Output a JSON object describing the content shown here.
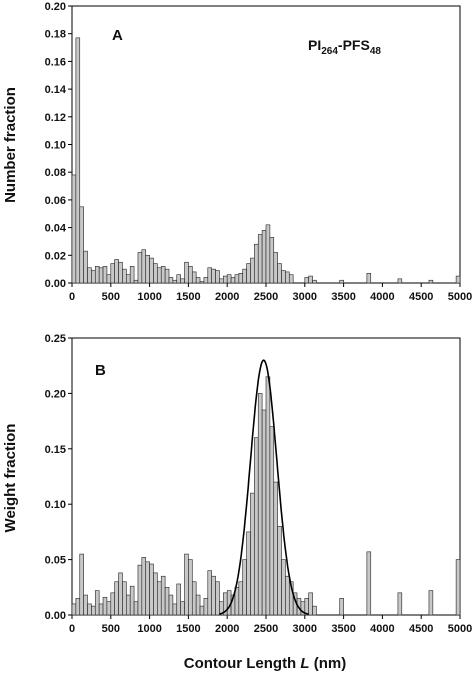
{
  "figure": {
    "xlabel_main": "Contour Length ",
    "xlabel_var": "L",
    "xlabel_unit": " (nm)",
    "sample_label_pre": "PI",
    "sample_label_sub1": "264",
    "sample_label_mid": "-PFS",
    "sample_label_sub2": "48"
  },
  "chart_data": [
    {
      "type": "bar",
      "panel_label": "A",
      "title": "",
      "ylabel": "Number fraction",
      "xlabel": "",
      "xlim": [
        0,
        5000
      ],
      "ylim": [
        0,
        0.2
      ],
      "xticks": [
        0,
        500,
        1000,
        1500,
        2000,
        2500,
        3000,
        3500,
        4000,
        4500,
        5000
      ],
      "yticks": [
        0.0,
        0.02,
        0.04,
        0.06,
        0.08,
        0.1,
        0.12,
        0.14,
        0.16,
        0.18,
        0.2
      ],
      "ytick_labels": [
        "0.00",
        "0.02",
        "0.04",
        "0.06",
        "0.08",
        "0.10",
        "0.12",
        "0.14",
        "0.16",
        "0.18",
        "0.20"
      ],
      "bin_width": 50,
      "bins_x": [
        0,
        50,
        100,
        150,
        200,
        250,
        300,
        350,
        400,
        450,
        500,
        550,
        600,
        650,
        700,
        750,
        800,
        850,
        900,
        950,
        1000,
        1050,
        1100,
        1150,
        1200,
        1250,
        1300,
        1350,
        1400,
        1450,
        1500,
        1550,
        1600,
        1650,
        1700,
        1750,
        1800,
        1850,
        1900,
        1950,
        2000,
        2050,
        2100,
        2150,
        2200,
        2250,
        2300,
        2350,
        2400,
        2450,
        2500,
        2550,
        2600,
        2650,
        2700,
        2750,
        2800,
        3000,
        3050,
        3100,
        3450,
        3800,
        4200,
        4600,
        4950
      ],
      "values": [
        0.078,
        0.177,
        0.055,
        0.023,
        0.011,
        0.009,
        0.012,
        0.011,
        0.012,
        0.006,
        0.014,
        0.017,
        0.015,
        0.01,
        0.006,
        0.012,
        0.002,
        0.022,
        0.024,
        0.02,
        0.018,
        0.014,
        0.011,
        0.012,
        0.01,
        0.004,
        0.002,
        0.006,
        0.003,
        0.015,
        0.012,
        0.008,
        0.004,
        0.001,
        0.004,
        0.011,
        0.01,
        0.009,
        0.003,
        0.005,
        0.006,
        0.004,
        0.006,
        0.007,
        0.01,
        0.014,
        0.018,
        0.028,
        0.035,
        0.038,
        0.042,
        0.033,
        0.022,
        0.014,
        0.009,
        0.008,
        0.006,
        0.004,
        0.005,
        0.002,
        0.002,
        0.007,
        0.003,
        0.002,
        0.005
      ]
    },
    {
      "type": "bar",
      "panel_label": "B",
      "title": "",
      "ylabel": "Weight fraction",
      "xlabel": "Contour Length L (nm)",
      "xlim": [
        0,
        5000
      ],
      "ylim": [
        0,
        0.25
      ],
      "xticks": [
        0,
        500,
        1000,
        1500,
        2000,
        2500,
        3000,
        3500,
        4000,
        4500,
        5000
      ],
      "yticks": [
        0.0,
        0.05,
        0.1,
        0.15,
        0.2,
        0.25
      ],
      "ytick_labels": [
        "0.00",
        "0.05",
        "0.10",
        "0.15",
        "0.20",
        "0.25"
      ],
      "bin_width": 50,
      "bins_x": [
        0,
        50,
        100,
        150,
        200,
        250,
        300,
        350,
        400,
        450,
        500,
        550,
        600,
        650,
        700,
        750,
        800,
        850,
        900,
        950,
        1000,
        1050,
        1100,
        1150,
        1200,
        1250,
        1300,
        1350,
        1400,
        1450,
        1500,
        1550,
        1600,
        1650,
        1700,
        1750,
        1800,
        1850,
        1900,
        1950,
        2000,
        2050,
        2100,
        2150,
        2200,
        2250,
        2300,
        2350,
        2400,
        2450,
        2500,
        2550,
        2600,
        2650,
        2700,
        2750,
        2800,
        2850,
        2900,
        2950,
        3000,
        3050,
        3100,
        3450,
        3800,
        4200,
        4600,
        4950
      ],
      "values": [
        0.01,
        0.015,
        0.055,
        0.018,
        0.01,
        0.008,
        0.022,
        0.01,
        0.016,
        0.012,
        0.02,
        0.03,
        0.038,
        0.03,
        0.018,
        0.026,
        0.012,
        0.045,
        0.052,
        0.048,
        0.046,
        0.038,
        0.03,
        0.035,
        0.025,
        0.018,
        0.01,
        0.028,
        0.012,
        0.055,
        0.05,
        0.03,
        0.018,
        0.008,
        0.015,
        0.04,
        0.035,
        0.03,
        0.012,
        0.02,
        0.022,
        0.018,
        0.025,
        0.03,
        0.05,
        0.075,
        0.11,
        0.16,
        0.2,
        0.185,
        0.215,
        0.17,
        0.12,
        0.08,
        0.05,
        0.035,
        0.03,
        0.02,
        0.015,
        0.012,
        0.015,
        0.02,
        0.008,
        0.015,
        0.057,
        0.02,
        0.022,
        0.05
      ],
      "fit_curve": {
        "type": "gaussian",
        "peak_x": 2470,
        "peak_y": 0.23,
        "sigma": 170
      }
    }
  ]
}
